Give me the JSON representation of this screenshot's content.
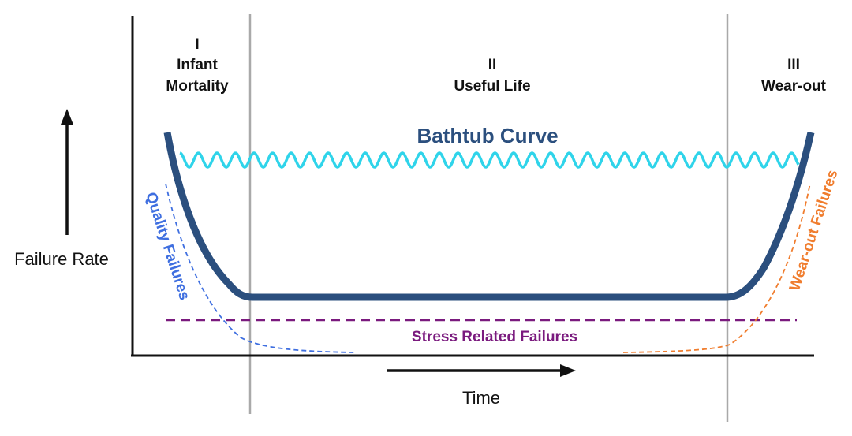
{
  "phases": [
    {
      "numeral": "I",
      "lines": [
        "Infant",
        "Mortality"
      ]
    },
    {
      "numeral": "II",
      "lines": [
        "Useful Life"
      ]
    },
    {
      "numeral": "III",
      "lines": [
        "Wear-out"
      ]
    }
  ],
  "title": "Bathtub Curve",
  "y_axis_label": "Failure Rate",
  "x_axis_label": "Time",
  "curve_labels": {
    "quality": "Quality Failures",
    "wearout": "Wear-out Failures",
    "stress": "Stress Related Failures"
  },
  "colors": {
    "bathtub": "#2b4f7e",
    "random_wave": "#2fd4ea",
    "quality": "#3f6fe0",
    "wearout": "#f07d2e",
    "stress": "#7a1a7e",
    "divider": "#a9a9a9",
    "axis": "#111111"
  }
}
